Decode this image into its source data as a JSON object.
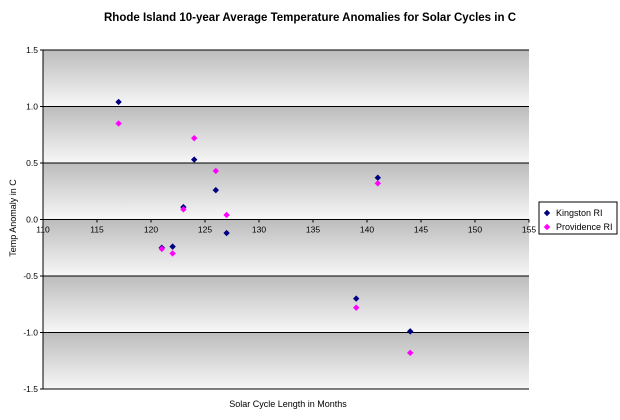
{
  "chart_data": {
    "type": "scatter",
    "title": "Rhode Island 10-year Average Temperature Anomalies for Solar Cycles in C",
    "xlabel": "Solar Cycle Length in Months",
    "ylabel": "Temp Anomaly in C",
    "xlim": [
      110,
      155
    ],
    "ylim": [
      -1.5,
      1.5
    ],
    "x_ticks": [
      110,
      115,
      120,
      125,
      130,
      135,
      140,
      145,
      150,
      155
    ],
    "y_ticks": [
      1.5,
      1.0,
      0.5,
      0.0,
      -0.5,
      -1.0,
      -1.5
    ],
    "x_tick_labels": [
      "110",
      "115",
      "120",
      "125",
      "130",
      "135",
      "140",
      "145",
      "150",
      "155"
    ],
    "y_tick_labels": [
      "1.5",
      "1.0",
      "0.5",
      "0.0",
      "-0.5",
      "-1.0",
      "-1.5"
    ],
    "grid": "horizontal",
    "background": "gray-gradient bands",
    "legend_position": "right",
    "series": [
      {
        "name": "Kingston RI",
        "color": "#000080",
        "marker": "diamond",
        "x": [
          117,
          121,
          122,
          123,
          124,
          126,
          127,
          139,
          141,
          144
        ],
        "y": [
          1.04,
          -0.25,
          -0.24,
          0.11,
          0.53,
          0.26,
          -0.12,
          -0.7,
          0.37,
          -0.99
        ]
      },
      {
        "name": "Providence RI",
        "color": "#FF00FF",
        "marker": "diamond",
        "x": [
          117,
          121,
          122,
          123,
          124,
          126,
          127,
          139,
          141,
          144
        ],
        "y": [
          0.85,
          -0.26,
          -0.3,
          0.09,
          0.72,
          0.43,
          0.04,
          -0.78,
          0.32,
          -1.18
        ]
      }
    ]
  }
}
